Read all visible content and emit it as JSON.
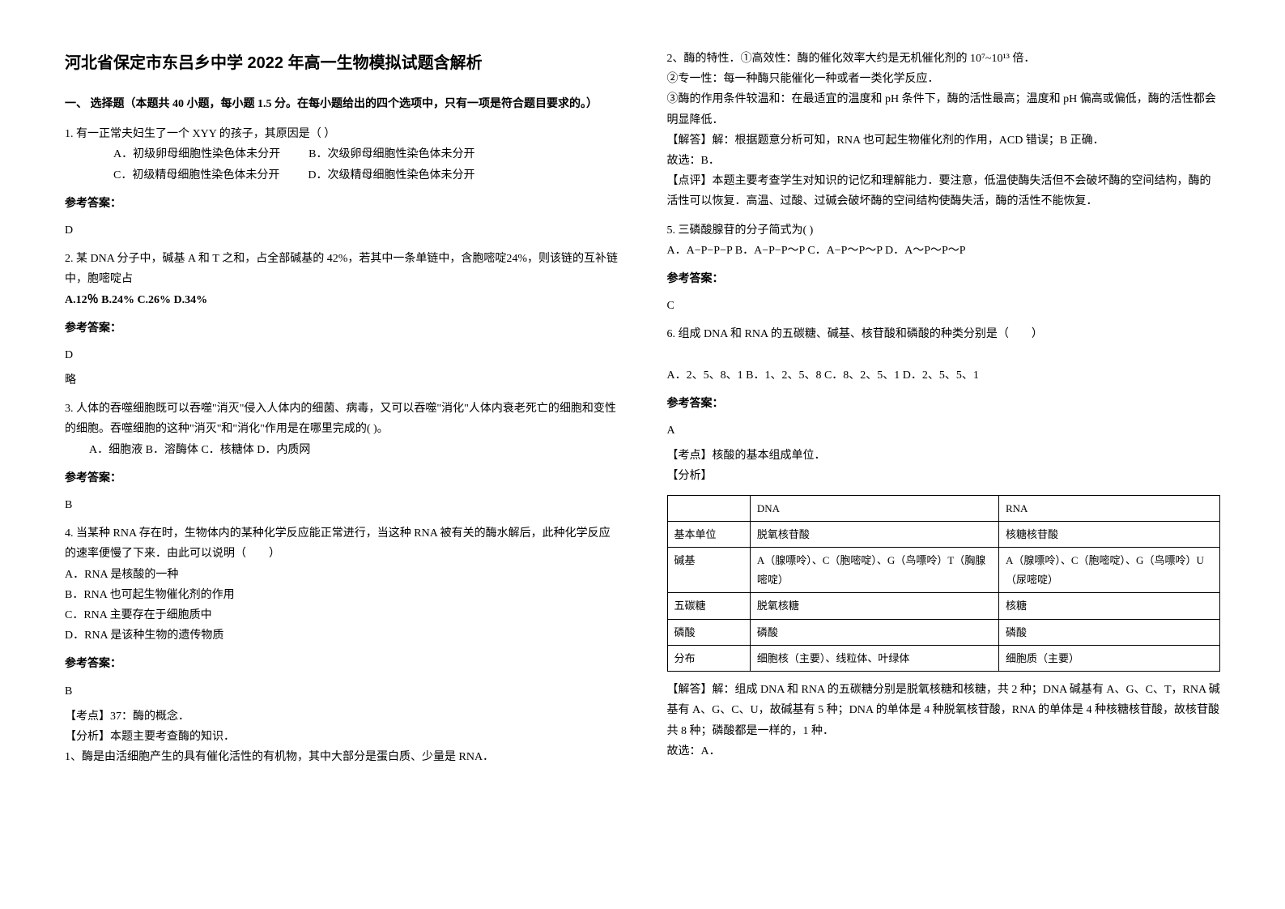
{
  "title": "河北省保定市东吕乡中学 2022 年高一生物模拟试题含解析",
  "section1": {
    "header": "一、 选择题（本题共 40 小题，每小题 1.5 分。在每小题给出的四个选项中，只有一项是符合题目要求的。）"
  },
  "q1": {
    "text": "1. 有一正常夫妇生了一个 XYY 的孩子，其原因是（  ）",
    "optA": "A．初级卵母细胞性染色体未分开",
    "optB": "B．次级卵母细胞性染色体未分开",
    "optC": "C．初级精母细胞性染色体未分开",
    "optD": "D．次级精母细胞性染色体未分开",
    "answerLabel": "参考答案：",
    "answer": "D"
  },
  "q2": {
    "text": "2. 某 DNA 分子中，碱基 A 和 T 之和，占全部碱基的 42%，若其中一条单链中，含胞嘧啶24%，则该链的互补链中，胞嘧啶占",
    "options": "A.12％       B.24%           C.26%               D.34%",
    "answerLabel": "参考答案：",
    "answer": "D",
    "note": "略"
  },
  "q3": {
    "text": "3. 人体的吞噬细胞既可以吞噬\"消灭\"侵入人体内的细菌、病毒，又可以吞噬\"消化\"人体内衰老死亡的细胞和变性的细胞。吞噬细胞的这种\"消灭\"和\"消化\"作用是在哪里完成的(       )。",
    "options": "A．细胞液      B．溶酶体     C．核糖体            D．内质网",
    "answerLabel": "参考答案：",
    "answer": "B"
  },
  "q4": {
    "text": "4. 当某种 RNA 存在时，生物体内的某种化学反应能正常进行，当这种 RNA 被有关的酶水解后，此种化学反应的速率便慢了下来．由此可以说明（　　）",
    "optA": "A．RNA 是核酸的一种",
    "optB": "B．RNA 也可起生物催化剂的作用",
    "optC": "C．RNA 主要存在于细胞质中",
    "optD": "D．RNA 是该种生物的遗传物质",
    "answerLabel": "参考答案：",
    "answer": "B",
    "kaodian": "【考点】37：酶的概念．",
    "fenxi": "【分析】本题主要考查酶的知识．",
    "line1": "1、酶是由活细胞产生的具有催化活性的有机物，其中大部分是蛋白质、少量是 RNA．"
  },
  "q4_right": {
    "line2": "2、酶的特性．①高效性：酶的催化效率大约是无机催化剂的 10⁷~10¹³ 倍．",
    "line3": "②专一性：每一种酶只能催化一种或者一类化学反应．",
    "line4": "③酶的作用条件较温和：在最适宜的温度和 pH 条件下，酶的活性最高；温度和 pH 偏高或偏低，酶的活性都会明显降低．",
    "jieda": "【解答】解：根据题意分析可知，RNA 也可起生物催化剂的作用，ACD 错误；B 正确．",
    "guxuan": "故选：B．",
    "dianping": "【点评】本题主要考查学生对知识的记忆和理解能力．要注意，低温使酶失活但不会破坏酶的空间结构，酶的活性可以恢复．高温、过酸、过碱会破坏酶的空间结构使酶失活，酶的活性不能恢复．"
  },
  "q5": {
    "text": "5. 三磷酸腺苷的分子简式为(               )",
    "options": "A．A−P−P−P       B．A−P−P～P             C．A−P～P～P             D．A～P～P～P",
    "answerLabel": "参考答案：",
    "answer": "C"
  },
  "q6": {
    "text": "6. 组成 DNA 和 RNA 的五碳糖、碱基、核苷酸和磷酸的种类分别是（　　）",
    "options": "A．2、5、8、1        B．1、2、5、8         C．8、2、5、1        D．2、5、5、1",
    "answerLabel": "参考答案：",
    "answer": "A",
    "kaodian": "【考点】核酸的基本组成单位．",
    "fenxi": "【分析】",
    "table": {
      "headers": [
        "",
        "DNA",
        "RNA"
      ],
      "rows": [
        [
          "基本单位",
          "脱氧核苷酸",
          "核糖核苷酸"
        ],
        [
          "碱基",
          "A（腺嘌呤）、C（胞嘧啶）、G（鸟嘌呤）T（胸腺嘧啶）",
          "A（腺嘌呤）、C（胞嘧啶）、G（鸟嘌呤）U（尿嘧啶）"
        ],
        [
          "五碳糖",
          "脱氧核糖",
          "核糖"
        ],
        [
          "磷酸",
          "磷酸",
          "磷酸"
        ],
        [
          "分布",
          "细胞核（主要）、线粒体、叶绿体",
          "细胞质（主要）"
        ]
      ]
    },
    "jieda": "【解答】解：组成 DNA 和 RNA 的五碳糖分别是脱氧核糖和核糖，共 2 种；DNA 碱基有 A、G、C、T，RNA 碱基有 A、G、C、U，故碱基有 5 种；DNA 的单体是 4 种脱氧核苷酸，RNA 的单体是 4 种核糖核苷酸，故核苷酸共 8 种；磷酸都是一样的，1 种．",
    "guxuan": "故选：A．"
  }
}
